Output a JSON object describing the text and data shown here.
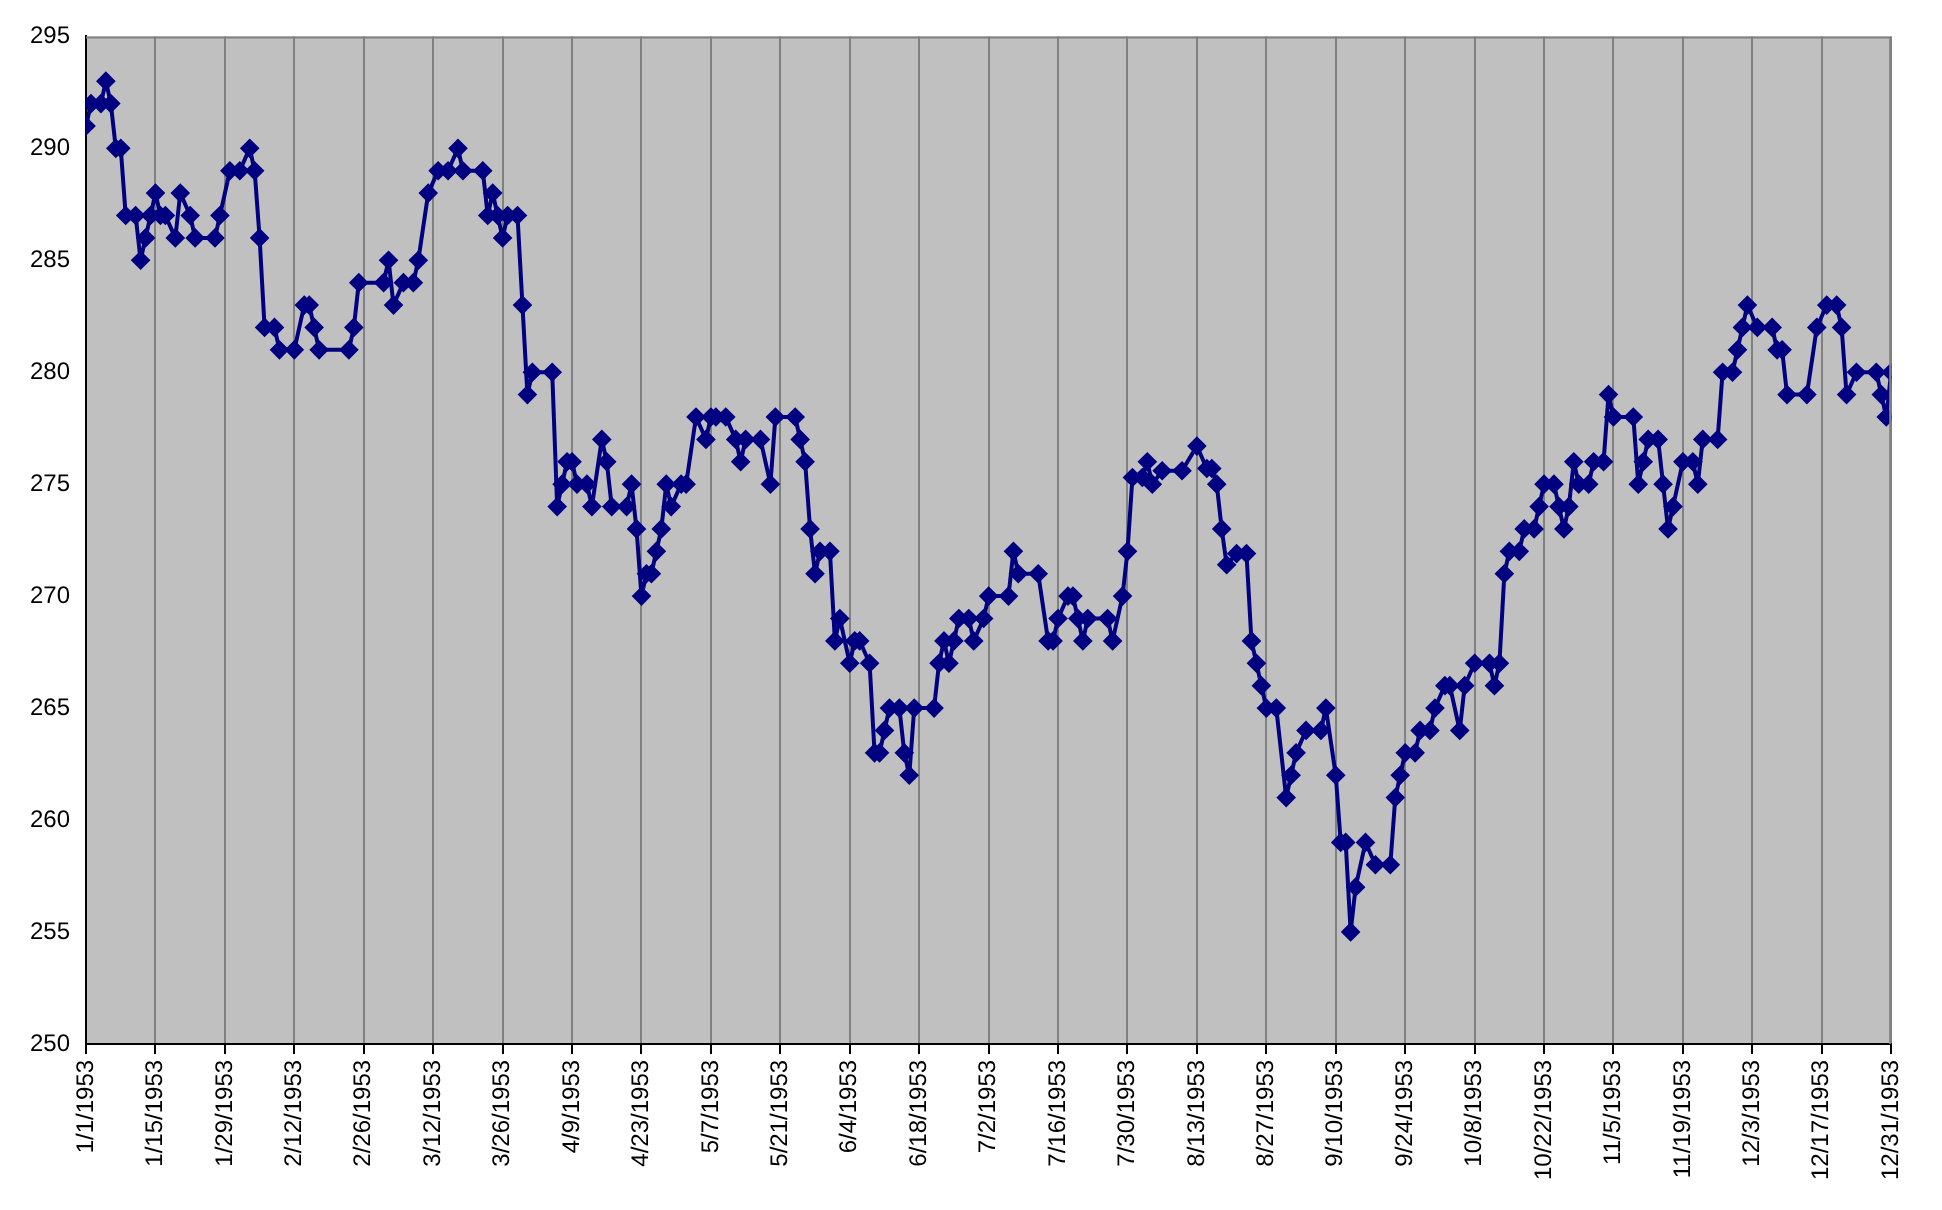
{
  "chart_data": {
    "type": "line",
    "marker": "diamond",
    "line_style": "solid",
    "grid": "x",
    "legend": false,
    "xlim": [
      "1953-01-01",
      "1953-12-31"
    ],
    "xticks": [
      {
        "value": "1953-01-01",
        "label": "1/1/1953"
      },
      {
        "value": "1953-01-15",
        "label": "1/15/1953"
      },
      {
        "value": "1953-01-29",
        "label": "1/29/1953"
      },
      {
        "value": "1953-02-12",
        "label": "2/12/1953"
      },
      {
        "value": "1953-02-26",
        "label": "2/26/1953"
      },
      {
        "value": "1953-03-12",
        "label": "3/12/1953"
      },
      {
        "value": "1953-03-26",
        "label": "3/26/1953"
      },
      {
        "value": "1953-04-09",
        "label": "4/9/1953"
      },
      {
        "value": "1953-04-23",
        "label": "4/23/1953"
      },
      {
        "value": "1953-05-07",
        "label": "5/7/1953"
      },
      {
        "value": "1953-05-21",
        "label": "5/21/1953"
      },
      {
        "value": "1953-06-04",
        "label": "6/4/1953"
      },
      {
        "value": "1953-06-18",
        "label": "6/18/1953"
      },
      {
        "value": "1953-07-02",
        "label": "7/2/1953"
      },
      {
        "value": "1953-07-16",
        "label": "7/16/1953"
      },
      {
        "value": "1953-07-30",
        "label": "7/30/1953"
      },
      {
        "value": "1953-08-13",
        "label": "8/13/1953"
      },
      {
        "value": "1953-08-27",
        "label": "8/27/1953"
      },
      {
        "value": "1953-09-10",
        "label": "9/10/1953"
      },
      {
        "value": "1953-09-24",
        "label": "9/24/1953"
      },
      {
        "value": "1953-10-08",
        "label": "10/8/1953"
      },
      {
        "value": "1953-10-22",
        "label": "10/22/1953"
      },
      {
        "value": "1953-11-05",
        "label": "11/5/1953"
      },
      {
        "value": "1953-11-19",
        "label": "11/19/1953"
      },
      {
        "value": "1953-12-03",
        "label": "12/3/1953"
      },
      {
        "value": "1953-12-17",
        "label": "12/17/1953"
      },
      {
        "value": "1953-12-31",
        "label": "12/31/1953"
      }
    ],
    "ylim": [
      250,
      295
    ],
    "yticks": [
      250,
      255,
      260,
      265,
      270,
      275,
      280,
      285,
      290,
      295
    ],
    "series": [
      {
        "color": "#000080",
        "x": [
          "1953-01-01",
          "1953-01-02",
          "1953-01-04",
          "1953-01-05",
          "1953-01-06",
          "1953-01-07",
          "1953-01-08",
          "1953-01-09",
          "1953-01-11",
          "1953-01-12",
          "1953-01-13",
          "1953-01-14",
          "1953-01-15",
          "1953-01-16",
          "1953-01-17",
          "1953-01-19",
          "1953-01-20",
          "1953-01-22",
          "1953-01-23",
          "1953-01-27",
          "1953-01-28",
          "1953-01-30",
          "1953-02-01",
          "1953-02-03",
          "1953-02-04",
          "1953-02-05",
          "1953-02-06",
          "1953-02-08",
          "1953-02-09",
          "1953-02-12",
          "1953-02-14",
          "1953-02-15",
          "1953-02-16",
          "1953-02-17",
          "1953-02-23",
          "1953-02-24",
          "1953-02-25",
          "1953-03-02",
          "1953-03-03",
          "1953-03-04",
          "1953-03-06",
          "1953-03-08",
          "1953-03-09",
          "1953-03-11",
          "1953-03-13",
          "1953-03-15",
          "1953-03-17",
          "1953-03-18",
          "1953-03-22",
          "1953-03-23",
          "1953-03-24",
          "1953-03-25",
          "1953-03-26",
          "1953-03-27",
          "1953-03-29",
          "1953-03-30",
          "1953-03-31",
          "1953-04-01",
          "1953-04-05",
          "1953-04-06",
          "1953-04-07",
          "1953-04-08",
          "1953-04-09",
          "1953-04-10",
          "1953-04-12",
          "1953-04-13",
          "1953-04-15",
          "1953-04-16",
          "1953-04-17",
          "1953-04-20",
          "1953-04-21",
          "1953-04-22",
          "1953-04-23",
          "1953-04-24",
          "1953-04-25",
          "1953-04-26",
          "1953-04-27",
          "1953-04-28",
          "1953-04-29",
          "1953-05-01",
          "1953-05-02",
          "1953-05-04",
          "1953-05-06",
          "1953-05-07",
          "1953-05-08",
          "1953-05-10",
          "1953-05-12",
          "1953-05-13",
          "1953-05-14",
          "1953-05-17",
          "1953-05-19",
          "1953-05-20",
          "1953-05-24",
          "1953-05-25",
          "1953-05-26",
          "1953-05-27",
          "1953-05-28",
          "1953-05-29",
          "1953-05-31",
          "1953-06-01",
          "1953-06-02",
          "1953-06-04",
          "1953-06-05",
          "1953-06-06",
          "1953-06-08",
          "1953-06-09",
          "1953-06-10",
          "1953-06-11",
          "1953-06-12",
          "1953-06-14",
          "1953-06-15",
          "1953-06-16",
          "1953-06-17",
          "1953-06-21",
          "1953-06-22",
          "1953-06-23",
          "1953-06-24",
          "1953-06-25",
          "1953-06-26",
          "1953-06-28",
          "1953-06-29",
          "1953-07-01",
          "1953-07-02",
          "1953-07-06",
          "1953-07-07",
          "1953-07-08",
          "1953-07-12",
          "1953-07-14",
          "1953-07-15",
          "1953-07-16",
          "1953-07-18",
          "1953-07-19",
          "1953-07-20",
          "1953-07-21",
          "1953-07-22",
          "1953-07-26",
          "1953-07-27",
          "1953-07-29",
          "1953-07-30",
          "1953-07-31",
          "1953-08-02",
          "1953-08-03",
          "1953-08-04",
          "1953-08-06",
          "1953-08-10",
          "1953-08-13",
          "1953-08-15",
          "1953-08-16",
          "1953-08-17",
          "1953-08-18",
          "1953-08-19",
          "1953-08-21",
          "1953-08-23",
          "1953-08-24",
          "1953-08-25",
          "1953-08-26",
          "1953-08-27",
          "1953-08-29",
          "1953-08-31",
          "1953-09-01",
          "1953-09-02",
          "1953-09-04",
          "1953-09-07",
          "1953-09-08",
          "1953-09-10",
          "1953-09-11",
          "1953-09-12",
          "1953-09-13",
          "1953-09-14",
          "1953-09-16",
          "1953-09-18",
          "1953-09-21",
          "1953-09-22",
          "1953-09-23",
          "1953-09-24",
          "1953-09-26",
          "1953-09-27",
          "1953-09-29",
          "1953-09-30",
          "1953-10-02",
          "1953-10-03",
          "1953-10-05",
          "1953-10-06",
          "1953-10-08",
          "1953-10-11",
          "1953-10-12",
          "1953-10-13",
          "1953-10-14",
          "1953-10-15",
          "1953-10-17",
          "1953-10-18",
          "1953-10-20",
          "1953-10-21",
          "1953-10-22",
          "1953-10-24",
          "1953-10-25",
          "1953-10-26",
          "1953-10-27",
          "1953-10-28",
          "1953-10-29",
          "1953-10-31",
          "1953-11-01",
          "1953-11-03",
          "1953-11-04",
          "1953-11-05",
          "1953-11-09",
          "1953-11-10",
          "1953-11-11",
          "1953-11-12",
          "1953-11-14",
          "1953-11-15",
          "1953-11-16",
          "1953-11-17",
          "1953-11-19",
          "1953-11-21",
          "1953-11-22",
          "1953-11-23",
          "1953-11-26",
          "1953-11-27",
          "1953-11-29",
          "1953-11-30",
          "1953-12-01",
          "1953-12-02",
          "1953-12-04",
          "1953-12-07",
          "1953-12-08",
          "1953-12-09",
          "1953-12-10",
          "1953-12-14",
          "1953-12-16",
          "1953-12-18",
          "1953-12-20",
          "1953-12-21",
          "1953-12-22",
          "1953-12-24",
          "1953-12-28",
          "1953-12-29",
          "1953-12-30",
          "1953-12-31"
        ],
        "values": [
          291,
          292,
          292,
          293,
          292,
          290,
          290,
          287,
          287,
          285,
          286,
          287,
          288,
          287,
          287,
          286,
          288,
          287,
          286,
          286,
          287,
          289,
          289,
          290,
          289,
          286,
          282,
          282,
          281,
          281,
          283,
          283,
          282,
          281,
          281,
          282,
          284,
          284,
          285,
          283,
          284,
          284,
          285,
          288,
          289,
          289,
          290,
          289,
          289,
          287,
          288,
          287,
          286,
          287,
          287,
          283,
          279,
          280,
          280,
          274,
          275,
          276,
          276,
          275,
          275,
          274,
          277,
          276,
          274,
          274,
          275,
          273,
          270,
          271,
          271,
          272,
          273,
          275,
          274,
          275,
          275,
          278,
          277,
          278,
          278,
          278,
          277,
          276,
          277,
          277,
          275,
          278,
          278,
          277,
          276,
          273,
          271,
          272,
          272,
          268,
          269,
          267,
          268,
          268,
          267,
          263,
          263,
          264,
          265,
          265,
          263,
          262,
          265,
          265,
          267,
          268,
          267,
          268,
          269,
          269,
          268,
          269,
          270,
          270,
          272,
          271,
          271,
          268,
          268,
          269,
          270,
          270,
          269,
          268,
          269,
          269,
          268,
          270,
          272,
          275.3,
          275.3,
          276,
          275,
          275.6,
          275.6,
          276.7,
          275.7,
          275.7,
          275,
          273,
          271.4,
          271.9,
          271.9,
          268,
          267,
          266,
          265,
          265,
          261,
          262,
          263,
          264,
          264,
          265,
          262,
          259,
          259,
          255,
          257,
          259,
          258,
          258,
          261,
          262,
          263,
          263,
          264,
          264,
          265,
          266,
          266,
          264,
          266,
          267,
          267,
          266,
          267,
          271,
          272,
          272,
          273,
          273,
          274,
          275,
          275,
          274,
          273,
          274,
          276,
          275,
          275,
          276,
          276,
          279,
          278,
          278,
          275,
          276,
          277,
          277,
          275,
          273,
          274,
          276,
          276,
          275,
          277,
          277,
          280,
          280,
          281,
          282,
          283,
          282,
          282,
          281,
          281,
          279,
          279,
          282,
          283,
          283,
          282,
          279,
          280,
          280,
          279,
          278,
          280
        ]
      }
    ]
  }
}
